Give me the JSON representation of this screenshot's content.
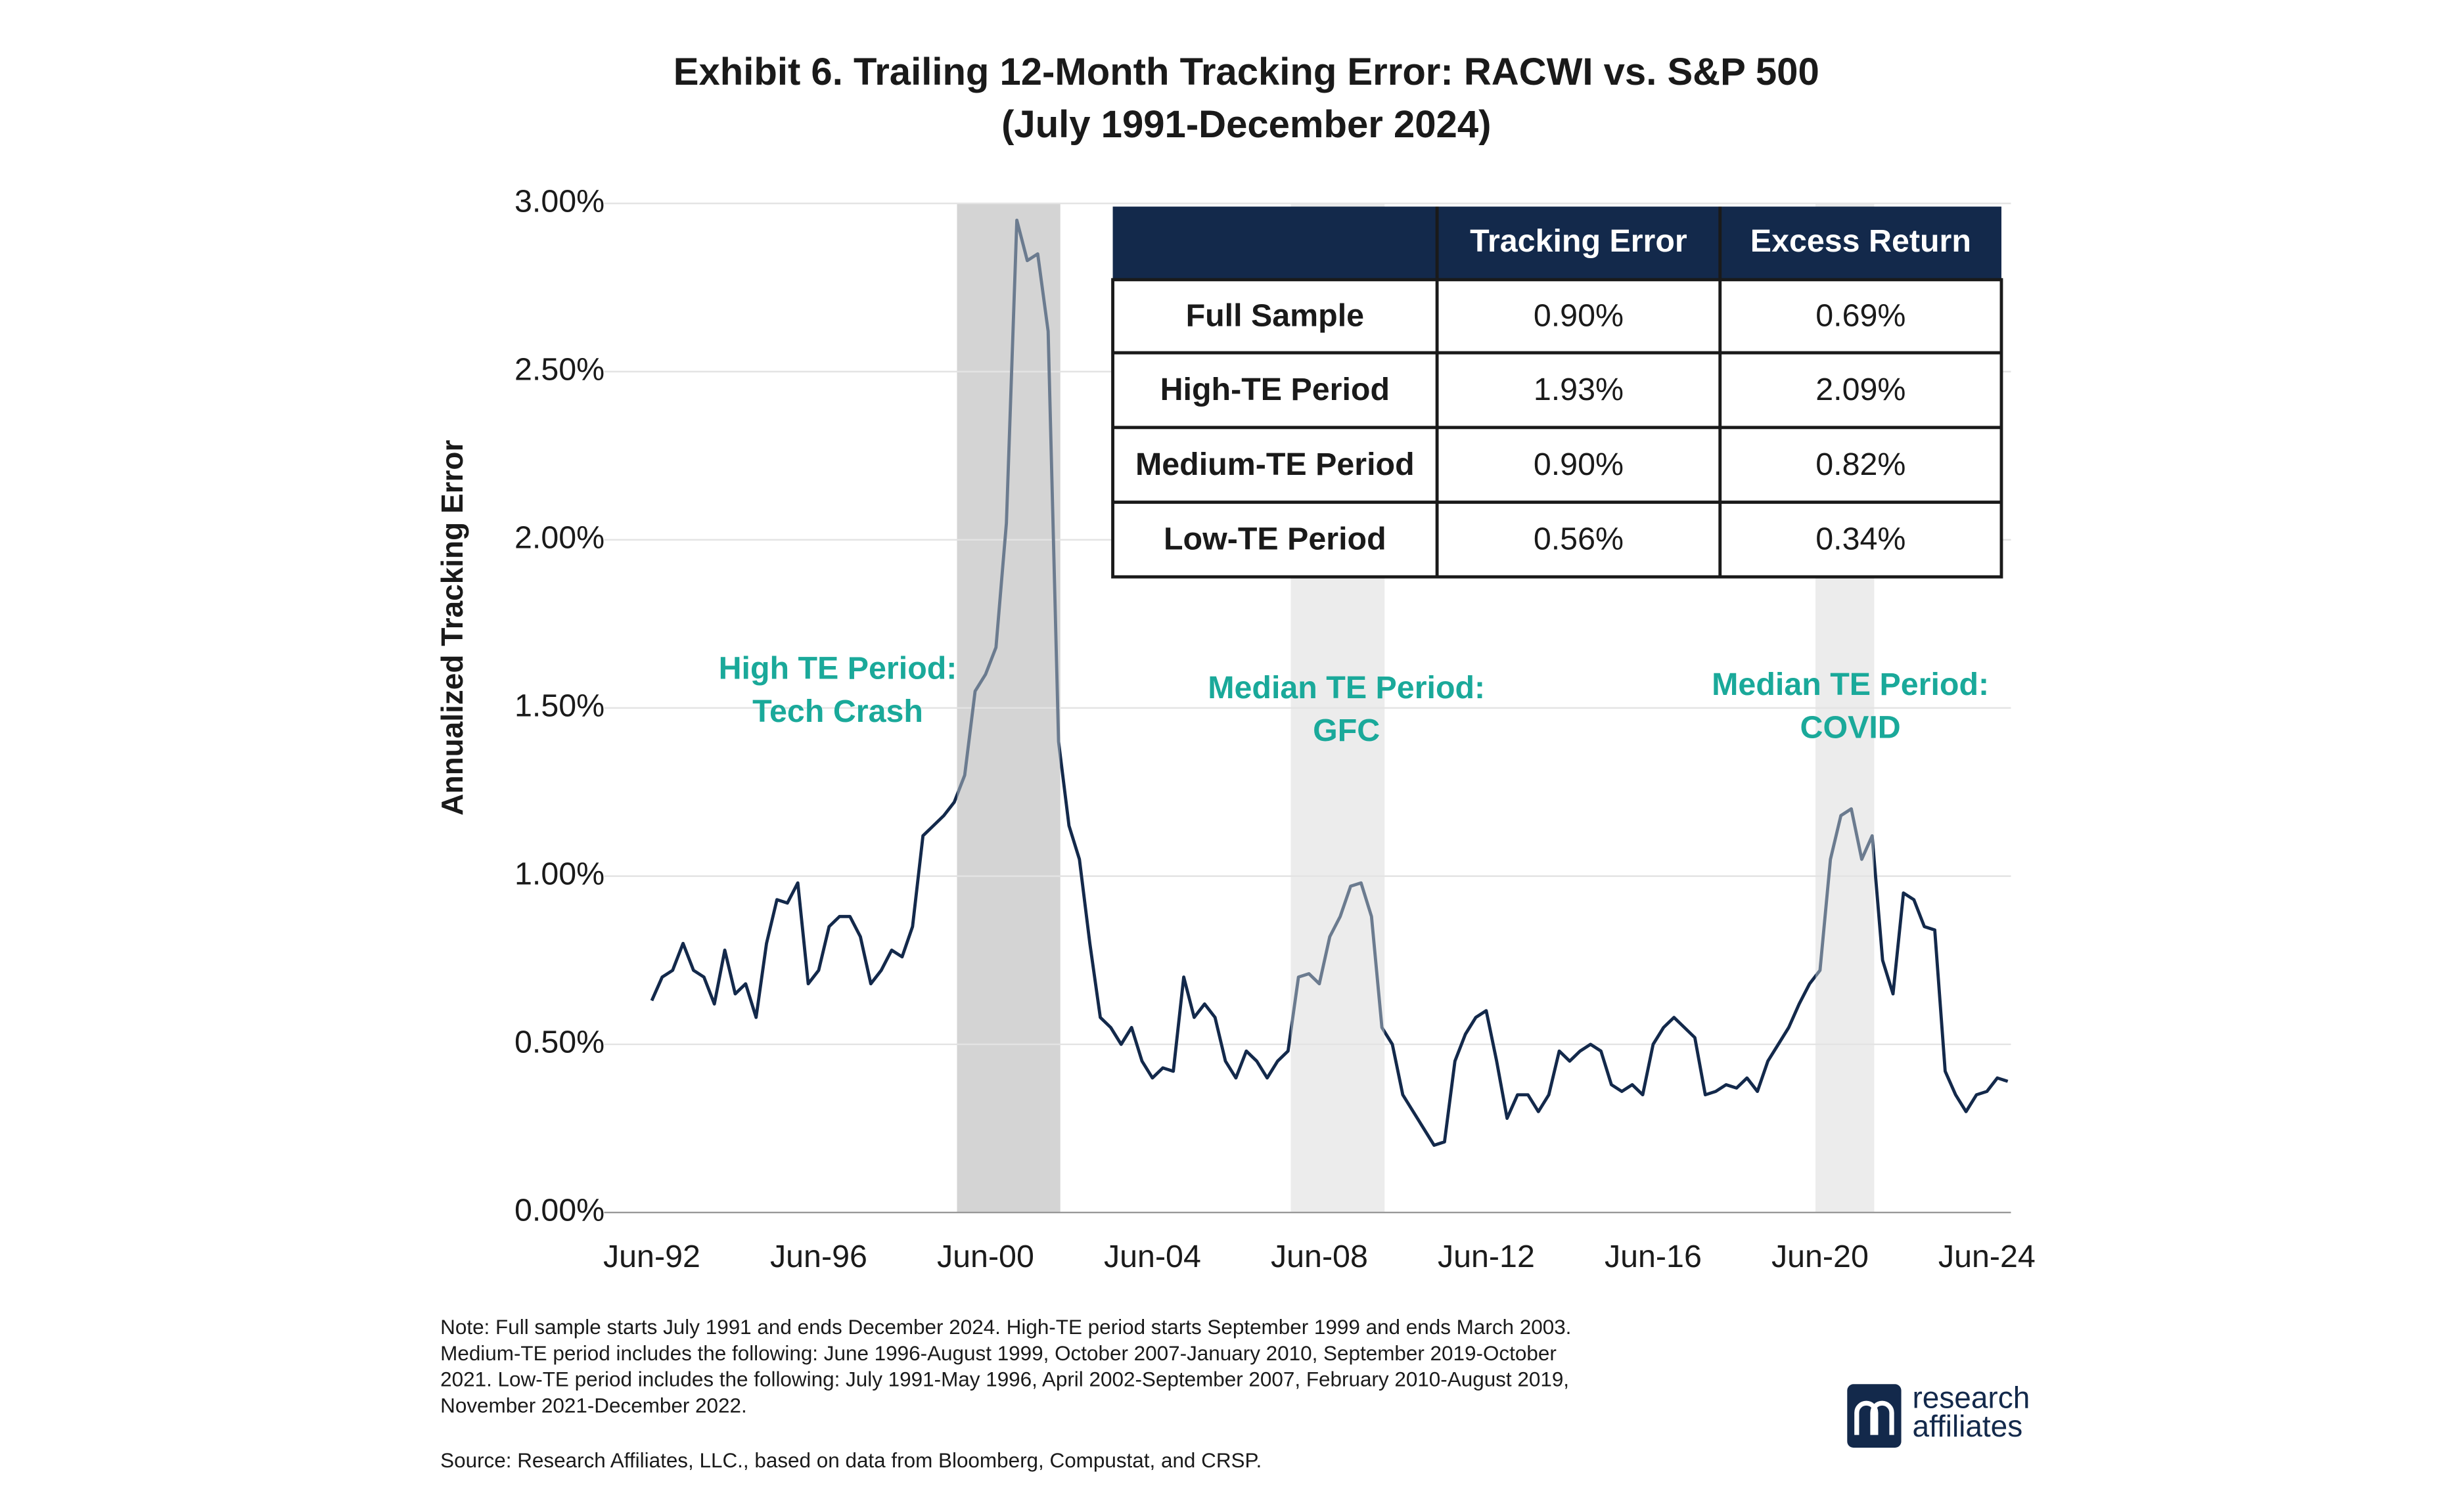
{
  "chart_data": {
    "type": "line",
    "title": "Exhibit 6. Trailing 12-Month Tracking Error: RACWI vs. S&P 500",
    "subtitle": "(July 1991-December 2024)",
    "y_label": "Annualized Tracking Error",
    "categories": [
      "Jun-92",
      null,
      null,
      null,
      null,
      null,
      null,
      null,
      null,
      null,
      null,
      null,
      null,
      null,
      null,
      null,
      "Jun-96",
      null,
      null,
      null,
      null,
      null,
      null,
      null,
      null,
      null,
      null,
      null,
      null,
      null,
      null,
      null,
      "Jun-00",
      null,
      null,
      null,
      null,
      null,
      null,
      null,
      null,
      null,
      null,
      null,
      null,
      null,
      null,
      null,
      "Jun-04",
      null,
      null,
      null,
      null,
      null,
      null,
      null,
      null,
      null,
      null,
      null,
      null,
      null,
      null,
      null,
      "Jun-08",
      null,
      null,
      null,
      null,
      null,
      null,
      null,
      null,
      null,
      null,
      null,
      null,
      null,
      null,
      null,
      "Jun-12",
      null,
      null,
      null,
      null,
      null,
      null,
      null,
      null,
      null,
      null,
      null,
      null,
      null,
      null,
      null,
      "Jun-16",
      null,
      null,
      null,
      null,
      null,
      null,
      null,
      null,
      null,
      null,
      null,
      null,
      null,
      null,
      null,
      "Jun-20",
      null,
      null,
      null,
      null,
      null,
      null,
      null,
      null,
      null,
      null,
      null,
      null,
      null,
      null,
      null,
      "Jun-24",
      null,
      null
    ],
    "series": [
      {
        "color": "#13294b",
        "values": [
          0.63,
          0.7,
          0.72,
          0.8,
          0.72,
          0.7,
          0.62,
          0.78,
          0.65,
          0.68,
          0.58,
          0.8,
          0.93,
          0.92,
          0.98,
          0.68,
          0.72,
          0.85,
          0.88,
          0.88,
          0.82,
          0.68,
          0.72,
          0.78,
          0.76,
          0.85,
          1.12,
          1.15,
          1.18,
          1.22,
          1.3,
          1.55,
          1.6,
          1.68,
          2.05,
          2.95,
          2.83,
          2.85,
          2.62,
          1.4,
          1.15,
          1.05,
          0.8,
          0.58,
          0.55,
          0.5,
          0.55,
          0.45,
          0.4,
          0.43,
          0.42,
          0.7,
          0.58,
          0.62,
          0.58,
          0.45,
          0.4,
          0.48,
          0.45,
          0.4,
          0.45,
          0.48,
          0.7,
          0.71,
          0.68,
          0.82,
          0.88,
          0.97,
          0.98,
          0.88,
          0.55,
          0.5,
          0.35,
          0.3,
          0.25,
          0.2,
          0.21,
          0.45,
          0.53,
          0.58,
          0.6,
          0.45,
          0.28,
          0.35,
          0.35,
          0.3,
          0.35,
          0.48,
          0.45,
          0.48,
          0.5,
          0.48,
          0.38,
          0.36,
          0.38,
          0.35,
          0.5,
          0.55,
          0.58,
          0.55,
          0.52,
          0.35,
          0.36,
          0.38,
          0.37,
          0.4,
          0.36,
          0.45,
          0.5,
          0.55,
          0.62,
          0.68,
          0.72,
          1.05,
          1.18,
          1.2,
          1.05,
          1.12,
          0.75,
          0.65,
          0.95,
          0.93,
          0.85,
          0.84,
          0.42,
          0.35,
          0.3,
          0.35,
          0.36,
          0.4,
          0.39
        ]
      }
    ],
    "ylim": [
      0,
      3
    ],
    "yticks": [
      {
        "value": 0,
        "label": "0.00%"
      },
      {
        "value": 0.5,
        "label": "0.50%"
      },
      {
        "value": 1,
        "label": "1.00%"
      },
      {
        "value": 1.5,
        "label": "1.50%"
      },
      {
        "value": 2,
        "label": "2.00%"
      },
      {
        "value": 2.5,
        "label": "2.50%"
      },
      {
        "value": 3,
        "label": "3.00%"
      }
    ],
    "grid": true,
    "annotations": [
      {
        "lines": [
          "High TE Period:",
          "Tech Crash"
        ],
        "color": "#1aa99a"
      },
      {
        "lines": [
          "Median TE Period:",
          "GFC"
        ],
        "color": "#1aa99a"
      },
      {
        "lines": [
          "Median TE Period:",
          "COVID"
        ],
        "color": "#1aa99a"
      }
    ]
  },
  "table": {
    "header": [
      "Tracking Error",
      "Excess Return"
    ],
    "rows": [
      [
        "Full Sample",
        "0.90%",
        "0.69%"
      ],
      [
        "High-TE Period",
        "1.93%",
        "2.09%"
      ],
      [
        "Medium-TE Period",
        "0.90%",
        "0.82%"
      ],
      [
        "Low-TE Period",
        "0.56%",
        "0.34%"
      ]
    ]
  },
  "notes": [
    "Note: Full sample starts July 1991 and ends December 2024. High-TE period starts September 1999 and ends March 2003.",
    "Medium-TE period includes the following: June 1996-August 1999, October 2007-January 2010, September 2019-October",
    "2021. Low-TE period includes the following: July 1991-May 1996, April 2002-September 2007, February 2010-August 2019,",
    "November 2021-December 2022."
  ],
  "source": "Source: Research Affiliates, LLC., based on data from Bloomberg, Compustat, and CRSP.",
  "logo": [
    "research",
    "affiliates"
  ]
}
